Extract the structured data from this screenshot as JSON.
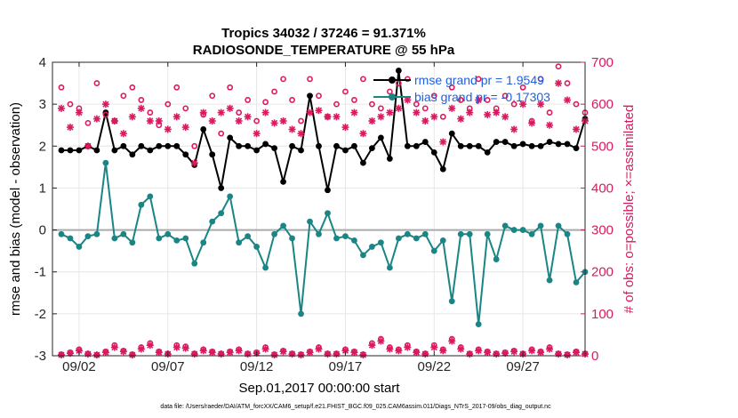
{
  "chart_data": {
    "type": "line",
    "title_line1": "Tropics 34032 / 37246 = 91.371%",
    "title_line2": "RADIOSONDE_TEMPERATURE @ 55 hPa",
    "xlabel": "Sep.01,2017 00:00:00 start",
    "ylabel_left": "rmse and bias (model - observation)",
    "ylabel_right": "# of obs: o=possible; ×=assimilated",
    "x_range": [
      0.5,
      30.5
    ],
    "ylim_left": [
      -3,
      4
    ],
    "ylim_right": [
      0,
      700
    ],
    "x_ticks": [
      {
        "x": 2,
        "label": "09/02"
      },
      {
        "x": 7,
        "label": "09/07"
      },
      {
        "x": 12,
        "label": "09/12"
      },
      {
        "x": 17,
        "label": "09/17"
      },
      {
        "x": 22,
        "label": "09/22"
      },
      {
        "x": 27,
        "label": "09/27"
      }
    ],
    "y_ticks_left": [
      -3,
      -2,
      -1,
      0,
      1,
      2,
      3,
      4
    ],
    "y_ticks_right": [
      0,
      100,
      200,
      300,
      400,
      500,
      600,
      700
    ],
    "zero_line": 0,
    "colors": {
      "rmse": "#000000",
      "bias": "#1a8585",
      "obs": "#d81b60",
      "legend_text": "#1f5fe0",
      "zero_line": "#aaaaaa"
    },
    "legend": [
      {
        "label": "rmse grand pr = 1.9549",
        "series": "rmse"
      },
      {
        "label": "bias grand pr = -0.17303",
        "series": "bias"
      }
    ],
    "footnote": "data file: /Users/raeder/DAI/ATM_forcXX/CAM6_setup/f.e21.FHIST_BGC.f09_025.CAM6assim.011/Diags_NTrS_2017-09/obs_diag_output.nc",
    "x": [
      1,
      1.5,
      2,
      2.5,
      3,
      3.5,
      4,
      4.5,
      5,
      5.5,
      6,
      6.5,
      7,
      7.5,
      8,
      8.5,
      9,
      9.5,
      10,
      10.5,
      11,
      11.5,
      12,
      12.5,
      13,
      13.5,
      14,
      14.5,
      15,
      15.5,
      16,
      16.5,
      17,
      17.5,
      18,
      18.5,
      19,
      19.5,
      20,
      20.5,
      21,
      21.5,
      22,
      22.5,
      23,
      23.5,
      24,
      24.5,
      25,
      25.5,
      26,
      26.5,
      27,
      27.5,
      28,
      28.5,
      29,
      29.5,
      30,
      30.5
    ],
    "series": [
      {
        "name": "rmse",
        "axis": "left",
        "values": [
          1.9,
          1.9,
          1.9,
          2.0,
          1.9,
          2.8,
          1.9,
          2.0,
          1.8,
          2.0,
          1.9,
          2.0,
          2.0,
          2.0,
          1.8,
          1.55,
          2.4,
          1.8,
          1.0,
          2.2,
          2.0,
          2.0,
          1.9,
          2.05,
          1.95,
          1.15,
          2.0,
          1.9,
          3.2,
          2.0,
          0.95,
          2.0,
          1.9,
          2.0,
          1.6,
          1.95,
          2.2,
          1.7,
          3.8,
          2.0,
          2.0,
          2.1,
          1.85,
          1.45,
          2.3,
          2.0,
          2.0,
          2.0,
          1.85,
          2.1,
          2.1,
          2.0,
          2.05,
          2.0,
          2.0,
          2.1,
          2.05,
          2.05,
          1.95,
          2.65
        ]
      },
      {
        "name": "bias",
        "axis": "left",
        "values": [
          -0.1,
          -0.2,
          -0.4,
          -0.15,
          -0.1,
          1.6,
          -0.2,
          -0.1,
          -0.3,
          0.6,
          0.8,
          -0.2,
          -0.1,
          -0.25,
          -0.2,
          -0.8,
          -0.3,
          0.2,
          0.4,
          0.8,
          -0.3,
          -0.15,
          -0.4,
          -0.9,
          -0.1,
          0.1,
          -0.2,
          -2.0,
          0.2,
          -0.1,
          0.4,
          -0.2,
          -0.15,
          -0.25,
          -0.6,
          -0.4,
          -0.3,
          -0.9,
          -0.2,
          -0.1,
          -0.2,
          -0.1,
          -0.5,
          -0.25,
          -1.7,
          -0.1,
          -0.1,
          -2.25,
          -0.1,
          -0.7,
          0.1,
          0.0,
          0.0,
          -0.1,
          0.1,
          -1.2,
          0.1,
          -0.1,
          -1.25,
          -1.0
        ]
      },
      {
        "name": "possible",
        "axis": "right",
        "marker": "o",
        "values": [
          640,
          600,
          590,
          555,
          650,
          575,
          560,
          620,
          640,
          610,
          580,
          550,
          600,
          640,
          590,
          500,
          575,
          620,
          530,
          640,
          580,
          610,
          560,
          605,
          630,
          660,
          610,
          560,
          660,
          620,
          570,
          600,
          630,
          610,
          660,
          600,
          590,
          630,
          650,
          660,
          600,
          590,
          620,
          570,
          640,
          610,
          590,
          660,
          610,
          590,
          620,
          600,
          640,
          560,
          660,
          580,
          690,
          650,
          600,
          580
        ]
      },
      {
        "name": "assimilated",
        "axis": "right",
        "marker": "x",
        "values": [
          590,
          545,
          580,
          500,
          565,
          600,
          560,
          530,
          570,
          590,
          560,
          560,
          540,
          570,
          545,
          460,
          580,
          560,
          580,
          590,
          560,
          570,
          530,
          580,
          555,
          560,
          540,
          530,
          580,
          585,
          570,
          570,
          545,
          580,
          530,
          560,
          570,
          580,
          590,
          610,
          580,
          560,
          570,
          510,
          590,
          565,
          580,
          610,
          575,
          580,
          570,
          540,
          600,
          555,
          600,
          550,
          650,
          610,
          540,
          560
        ]
      },
      {
        "name": "possible_low",
        "axis": "right",
        "marker": "o",
        "values": [
          3,
          8,
          15,
          5,
          2,
          10,
          25,
          12,
          3,
          20,
          30,
          10,
          5,
          25,
          22,
          5,
          15,
          10,
          5,
          10,
          15,
          5,
          8,
          20,
          3,
          12,
          5,
          3,
          10,
          20,
          5,
          5,
          15,
          10,
          3,
          30,
          40,
          20,
          15,
          25,
          10,
          5,
          25,
          15,
          40,
          20,
          5,
          15,
          10,
          5,
          8,
          12,
          5,
          15,
          10,
          20,
          5,
          3,
          10,
          5
        ]
      },
      {
        "name": "assimilated_low",
        "axis": "right",
        "marker": "x",
        "values": [
          2,
          6,
          12,
          4,
          2,
          8,
          20,
          10,
          2,
          16,
          25,
          8,
          4,
          20,
          18,
          4,
          12,
          8,
          4,
          8,
          12,
          4,
          6,
          16,
          2,
          10,
          4,
          2,
          8,
          16,
          4,
          4,
          12,
          8,
          2,
          25,
          35,
          16,
          12,
          20,
          8,
          4,
          20,
          12,
          35,
          16,
          4,
          12,
          8,
          4,
          6,
          10,
          4,
          12,
          8,
          16,
          4,
          2,
          8,
          4
        ]
      }
    ]
  }
}
